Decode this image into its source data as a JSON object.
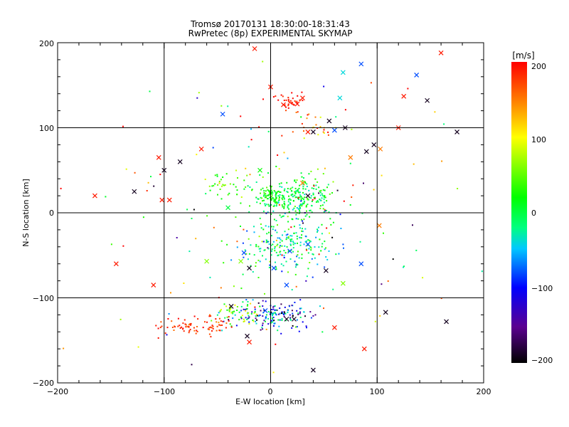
{
  "chart_data": {
    "type": "scatter",
    "title": "Tromsø 20170131 18:30:00-18:31:43",
    "subtitle": "RwPretec (8p) EXPERIMENTAL SKYMAP",
    "xlabel": "E-W location [km]",
    "ylabel": "N-S location [km]",
    "xlim": [
      -200,
      200
    ],
    "ylim": [
      -200,
      200
    ],
    "xticks": [
      "−200",
      "−100",
      "0",
      "100",
      "200"
    ],
    "yticks": [
      "−200",
      "−100",
      "0",
      "100",
      "200"
    ],
    "grid": true,
    "colorbar": {
      "unit": "[m/s]",
      "range": [
        -200,
        200
      ],
      "ticks": [
        "200",
        "100",
        "0",
        "−100",
        "−200"
      ],
      "colormap": [
        "#000000",
        "#5b0090",
        "#0000ff",
        "#00c8ff",
        "#00ff80",
        "#00ff00",
        "#ffff00",
        "#ff8000",
        "#ff0000"
      ]
    },
    "clusters": [
      {
        "x": 25,
        "y": 18,
        "sx": 18,
        "sy": 12,
        "n": 230,
        "v": 5,
        "sv": 25
      },
      {
        "x": 0,
        "y": 20,
        "sx": 6,
        "sy": 5,
        "n": 60,
        "v": 20,
        "sv": 15
      },
      {
        "x": -40,
        "y": 30,
        "sx": 15,
        "sy": 8,
        "n": 40,
        "v": 40,
        "sv": 20
      },
      {
        "x": 20,
        "y": -30,
        "sx": 22,
        "sy": 22,
        "n": 180,
        "v": -20,
        "sv": 35
      },
      {
        "x": 5,
        "y": -45,
        "sx": 20,
        "sy": 12,
        "n": 60,
        "v": -5,
        "sv": 35
      },
      {
        "x": 5,
        "y": -120,
        "sx": 20,
        "sy": 8,
        "n": 150,
        "v": -90,
        "sv": 60
      },
      {
        "x": -30,
        "y": -118,
        "sx": 12,
        "sy": 8,
        "n": 50,
        "v": 50,
        "sv": 40
      },
      {
        "x": -85,
        "y": -133,
        "sx": 10,
        "sy": 6,
        "n": 40,
        "v": 185,
        "sv": 15
      },
      {
        "x": -55,
        "y": -133,
        "sx": 8,
        "sy": 7,
        "n": 40,
        "v": 185,
        "sv": 15
      },
      {
        "x": 20,
        "y": 132,
        "sx": 7,
        "sy": 5,
        "n": 35,
        "v": 190,
        "sv": 10
      },
      {
        "x": 40,
        "y": 100,
        "sx": 15,
        "sy": 8,
        "n": 25,
        "v": 150,
        "sv": 50
      },
      {
        "x": 0,
        "y": 0,
        "sx": 90,
        "sy": 90,
        "n": 150,
        "v": 60,
        "sv": 160
      }
    ],
    "markers": [
      {
        "x": -15,
        "y": 193,
        "v": 190
      },
      {
        "x": 160,
        "y": 188,
        "v": 190
      },
      {
        "x": 85,
        "y": 175,
        "v": -80
      },
      {
        "x": 68,
        "y": 165,
        "v": -40
      },
      {
        "x": 137,
        "y": 162,
        "v": -80
      },
      {
        "x": 125,
        "y": 137,
        "v": 190
      },
      {
        "x": 147,
        "y": 132,
        "v": -190
      },
      {
        "x": -45,
        "y": 116,
        "v": -80
      },
      {
        "x": 0,
        "y": 148,
        "v": 190
      },
      {
        "x": 12,
        "y": 127,
        "v": 190
      },
      {
        "x": 25,
        "y": 128,
        "v": 190
      },
      {
        "x": 30,
        "y": 135,
        "v": 190
      },
      {
        "x": 65,
        "y": 135,
        "v": -40
      },
      {
        "x": 55,
        "y": 108,
        "v": -190
      },
      {
        "x": 60,
        "y": 97,
        "v": -80
      },
      {
        "x": 70,
        "y": 100,
        "v": -190
      },
      {
        "x": 35,
        "y": 95,
        "v": 190
      },
      {
        "x": 40,
        "y": 95,
        "v": -190
      },
      {
        "x": 90,
        "y": 72,
        "v": -190
      },
      {
        "x": 97,
        "y": 80,
        "v": -190
      },
      {
        "x": 103,
        "y": 75,
        "v": 150
      },
      {
        "x": 120,
        "y": 100,
        "v": 190
      },
      {
        "x": 175,
        "y": 95,
        "v": -190
      },
      {
        "x": -100,
        "y": 50,
        "v": -190
      },
      {
        "x": -85,
        "y": 60,
        "v": -190
      },
      {
        "x": -128,
        "y": 25,
        "v": -190
      },
      {
        "x": -165,
        "y": 20,
        "v": 190
      },
      {
        "x": -102,
        "y": 15,
        "v": 190
      },
      {
        "x": -105,
        "y": 65,
        "v": 190
      },
      {
        "x": -95,
        "y": 15,
        "v": 190
      },
      {
        "x": -65,
        "y": 75,
        "v": 190
      },
      {
        "x": 30,
        "y": 35,
        "v": 150
      },
      {
        "x": 35,
        "y": 20,
        "v": -190
      },
      {
        "x": 75,
        "y": 65,
        "v": 150
      },
      {
        "x": 102,
        "y": -15,
        "v": 150
      },
      {
        "x": -145,
        "y": -60,
        "v": 190
      },
      {
        "x": -110,
        "y": -85,
        "v": 190
      },
      {
        "x": -60,
        "y": -57,
        "v": 60
      },
      {
        "x": -28,
        "y": -57,
        "v": 60
      },
      {
        "x": -20,
        "y": -65,
        "v": -190
      },
      {
        "x": 18,
        "y": -45,
        "v": -80
      },
      {
        "x": 3,
        "y": -65,
        "v": -80
      },
      {
        "x": 15,
        "y": -85,
        "v": -80
      },
      {
        "x": 52,
        "y": -68,
        "v": -190
      },
      {
        "x": 85,
        "y": -60,
        "v": -80
      },
      {
        "x": 68,
        "y": -83,
        "v": 60
      },
      {
        "x": 108,
        "y": -117,
        "v": -190
      },
      {
        "x": 165,
        "y": -128,
        "v": -190
      },
      {
        "x": 88,
        "y": -160,
        "v": 190
      },
      {
        "x": 40,
        "y": -185,
        "v": -190
      },
      {
        "x": -37,
        "y": -110,
        "v": -190
      },
      {
        "x": -22,
        "y": -145,
        "v": -190
      },
      {
        "x": -20,
        "y": -152,
        "v": 190
      },
      {
        "x": 60,
        "y": -135,
        "v": 190
      },
      {
        "x": 22,
        "y": -125,
        "v": -190
      },
      {
        "x": 15,
        "y": -125,
        "v": -190
      },
      {
        "x": -5,
        "y": -115,
        "v": -80
      },
      {
        "x": -40,
        "y": 6,
        "v": 0
      },
      {
        "x": 0,
        "y": 23,
        "v": 20
      },
      {
        "x": -10,
        "y": 50,
        "v": 20
      },
      {
        "x": -25,
        "y": -47,
        "v": -80
      },
      {
        "x": 35,
        "y": -37,
        "v": -80
      }
    ]
  }
}
